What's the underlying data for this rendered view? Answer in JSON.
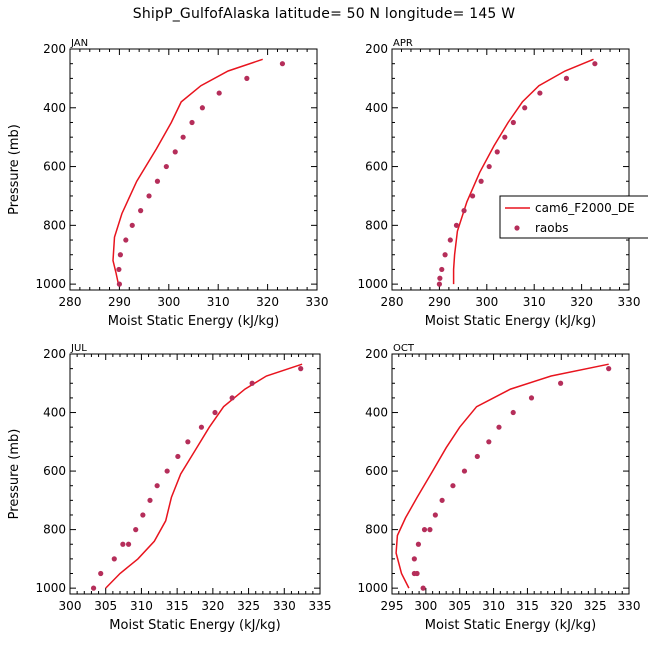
{
  "title": "ShipP_GulfofAlaska  latitude= 50 N longitude= 145 W",
  "colors": {
    "model": "#e8141e",
    "obs": "#b52e5a",
    "axis": "#000000"
  },
  "legend": {
    "placement": "right of APR panel",
    "model_label": "cam6_F2000_DE",
    "obs_label": "raobs"
  },
  "chart_data": [
    {
      "type": "line",
      "panel": "JAN",
      "title": "JAN",
      "xlabel": "Moist Static Energy (kJ/kg)",
      "ylabel": "Pressure (mb)",
      "xlim": [
        280,
        330
      ],
      "ylim": [
        1020,
        200
      ],
      "xticks": [
        280,
        290,
        300,
        310,
        320,
        330
      ],
      "yticks": [
        200,
        400,
        600,
        800,
        1000
      ],
      "series": [
        {
          "name": "cam6_F2000_DE",
          "kind": "line",
          "x": [
            319.0,
            312.0,
            306.5,
            302.5,
            300.5,
            297.5,
            293.5,
            290.5,
            289.0,
            288.7,
            289.3,
            289.8
          ],
          "y": [
            235,
            275,
            325,
            380,
            450,
            540,
            650,
            760,
            840,
            920,
            960,
            1000
          ]
        },
        {
          "name": "raobs",
          "kind": "points",
          "x": [
            323.0,
            315.8,
            310.2,
            306.8,
            304.7,
            302.9,
            301.3,
            299.5,
            297.7,
            296.0,
            294.3,
            292.6,
            291.3,
            290.2,
            289.9,
            290.0
          ],
          "y": [
            250,
            300,
            350,
            400,
            450,
            500,
            550,
            600,
            650,
            700,
            750,
            800,
            850,
            900,
            950,
            1000
          ]
        }
      ]
    },
    {
      "type": "line",
      "panel": "APR",
      "title": "APR",
      "xlabel": "Moist Static Energy (kJ/kg)",
      "ylabel": "",
      "xlim": [
        280,
        330
      ],
      "ylim": [
        1020,
        200
      ],
      "xticks": [
        280,
        290,
        300,
        310,
        320,
        330
      ],
      "yticks": [
        200,
        400,
        600,
        800,
        1000
      ],
      "series": [
        {
          "name": "cam6_F2000_DE",
          "kind": "line",
          "x": [
            322.5,
            316.5,
            311.0,
            307.5,
            304.5,
            301.5,
            298.5,
            295.8,
            293.8,
            293.2,
            293.0,
            293.0
          ],
          "y": [
            235,
            275,
            325,
            380,
            450,
            530,
            620,
            720,
            820,
            900,
            950,
            1000
          ]
        },
        {
          "name": "raobs",
          "kind": "points",
          "x": [
            322.8,
            316.8,
            311.2,
            308.0,
            305.6,
            303.8,
            302.2,
            300.5,
            298.8,
            297.0,
            295.2,
            293.6,
            292.3,
            291.2,
            290.5,
            290.1,
            290.0
          ],
          "y": [
            250,
            300,
            350,
            400,
            450,
            500,
            550,
            600,
            650,
            700,
            750,
            800,
            850,
            900,
            950,
            980,
            1000
          ]
        }
      ]
    },
    {
      "type": "line",
      "panel": "JUL",
      "title": "JUL",
      "xlabel": "Moist Static Energy (kJ/kg)",
      "ylabel": "Pressure (mb)",
      "xlim": [
        300,
        335
      ],
      "ylim": [
        1020,
        200
      ],
      "xticks": [
        300,
        305,
        310,
        315,
        320,
        325,
        330,
        335
      ],
      "yticks": [
        200,
        400,
        600,
        800,
        1000
      ],
      "series": [
        {
          "name": "cam6_F2000_DE",
          "kind": "line",
          "x": [
            332.5,
            327.5,
            324.5,
            321.5,
            319.5,
            317.5,
            315.5,
            314.2,
            313.4,
            311.8,
            309.5,
            307.0,
            305.0
          ],
          "y": [
            235,
            275,
            320,
            380,
            450,
            530,
            610,
            690,
            770,
            840,
            900,
            950,
            1000
          ]
        },
        {
          "name": "raobs",
          "kind": "points",
          "x": [
            332.3,
            325.5,
            322.7,
            320.3,
            318.4,
            316.5,
            315.1,
            313.6,
            312.2,
            311.2,
            310.2,
            309.2,
            308.2,
            307.4,
            306.2,
            304.3,
            303.3
          ],
          "y": [
            250,
            300,
            350,
            400,
            450,
            500,
            550,
            600,
            650,
            700,
            750,
            800,
            850,
            850,
            900,
            950,
            1000
          ]
        }
      ]
    },
    {
      "type": "line",
      "panel": "OCT",
      "title": "OCT",
      "xlabel": "Moist Static Energy (kJ/kg)",
      "ylabel": "",
      "xlim": [
        295,
        330
      ],
      "ylim": [
        1020,
        200
      ],
      "xticks": [
        295,
        300,
        305,
        310,
        315,
        320,
        325,
        330
      ],
      "yticks": [
        200,
        400,
        600,
        800,
        1000
      ],
      "series": [
        {
          "name": "cam6_F2000_DE",
          "kind": "line",
          "x": [
            327.0,
            318.5,
            312.5,
            307.5,
            305.0,
            303.0,
            301.0,
            298.7,
            297.0,
            295.8,
            295.6,
            296.4,
            297.5
          ],
          "y": [
            235,
            275,
            320,
            380,
            450,
            520,
            600,
            690,
            760,
            820,
            880,
            950,
            1000
          ]
        },
        {
          "name": "raobs",
          "kind": "points",
          "x": [
            327.0,
            319.9,
            315.6,
            312.9,
            310.8,
            309.3,
            307.6,
            305.7,
            304.0,
            302.4,
            301.4,
            300.6,
            299.8,
            298.9,
            298.3,
            298.3,
            298.7,
            299.6
          ],
          "y": [
            250,
            300,
            350,
            400,
            450,
            500,
            550,
            600,
            650,
            700,
            750,
            800,
            800,
            850,
            900,
            950,
            950,
            1000
          ]
        }
      ]
    }
  ]
}
